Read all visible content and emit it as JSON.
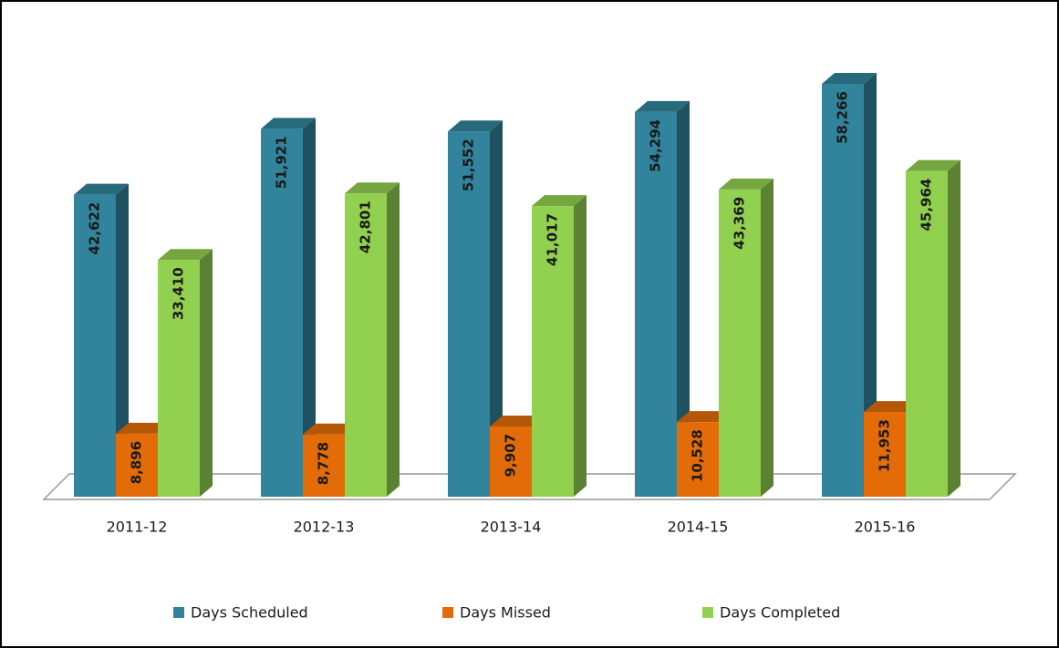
{
  "chart_data": {
    "type": "bar3d",
    "categories": [
      "2011-12",
      "2012-13",
      "2013-14",
      "2014-15",
      "2015-16"
    ],
    "series": [
      {
        "name": "Days Scheduled",
        "color": "#31849b",
        "values": [
          42622,
          51921,
          51552,
          54294,
          58266
        ],
        "value_labels": [
          "42,622",
          "51,921",
          "51,552",
          "54,294",
          "58,266"
        ]
      },
      {
        "name": "Days Missed",
        "color": "#e36c09",
        "values": [
          8896,
          8778,
          9907,
          10528,
          11953
        ],
        "value_labels": [
          "8,896",
          "8,778",
          "9,907",
          "10,528",
          "11,953"
        ]
      },
      {
        "name": "Days Completed",
        "color": "#92d050",
        "values": [
          33410,
          42801,
          41017,
          43369,
          45964
        ],
        "value_labels": [
          "33,410",
          "42,801",
          "41,017",
          "43,369",
          "45,964"
        ]
      }
    ],
    "legend": "bottom"
  }
}
